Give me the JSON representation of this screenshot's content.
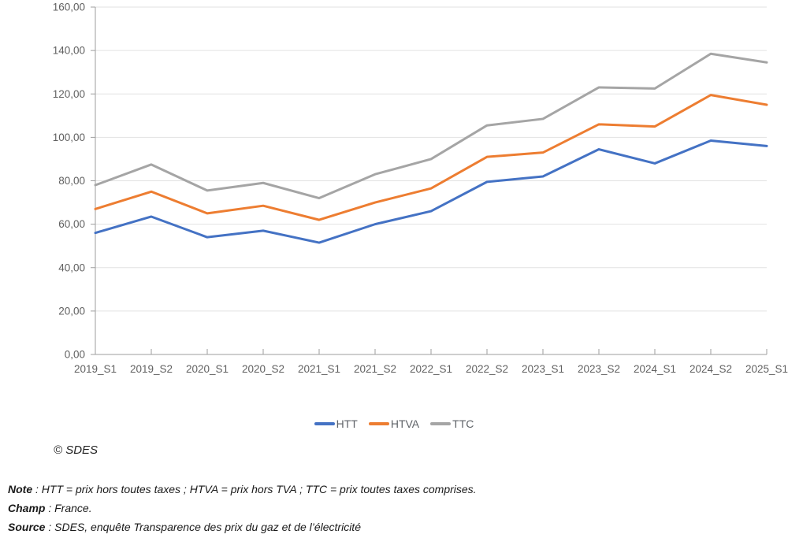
{
  "chart_data": {
    "type": "line",
    "title": "",
    "xlabel": "",
    "ylabel": "",
    "categories": [
      "2019_S1",
      "2019_S2",
      "2020_S1",
      "2020_S2",
      "2021_S1",
      "2021_S2",
      "2022_S1",
      "2022_S2",
      "2023_S1",
      "2023_S2",
      "2024_S1",
      "2024_S2",
      "2025_S1"
    ],
    "series": [
      {
        "name": "HTT",
        "color": "#4472C4",
        "values": [
          56.0,
          63.5,
          54.0,
          57.0,
          51.5,
          60.0,
          66.0,
          79.5,
          82.0,
          94.5,
          88.0,
          98.5,
          96.0
        ]
      },
      {
        "name": "HTVA",
        "color": "#ED7D31",
        "values": [
          67.0,
          75.0,
          65.0,
          68.5,
          62.0,
          70.0,
          76.5,
          91.0,
          93.0,
          106.0,
          105.0,
          119.5,
          115.0
        ]
      },
      {
        "name": "TTC",
        "color": "#A5A5A5",
        "values": [
          78.0,
          87.5,
          75.5,
          79.0,
          72.0,
          83.0,
          90.0,
          105.5,
          108.5,
          123.0,
          122.5,
          138.5,
          134.5
        ]
      }
    ],
    "ylim": [
      0,
      160
    ],
    "y_tick_step": 20,
    "y_tick_labels": [
      "0,00",
      "20,00",
      "40,00",
      "60,00",
      "80,00",
      "100,00",
      "120,00",
      "140,00",
      "160,00"
    ],
    "grid": true,
    "legend_position": "bottom",
    "axis_color": "#9e9e9e",
    "grid_color": "#e2e2e2",
    "tick_label_color": "#616161"
  },
  "copyright": "© SDES",
  "notes": [
    {
      "label": "Note",
      "text": " : HTT = prix hors toutes taxes ; HTVA = prix hors TVA ; TTC = prix toutes taxes comprises."
    },
    {
      "label": "Champ",
      "text": " : France."
    },
    {
      "label": "Source",
      "text": " : SDES, enquête Transparence des prix du gaz et de l’électricité"
    }
  ]
}
